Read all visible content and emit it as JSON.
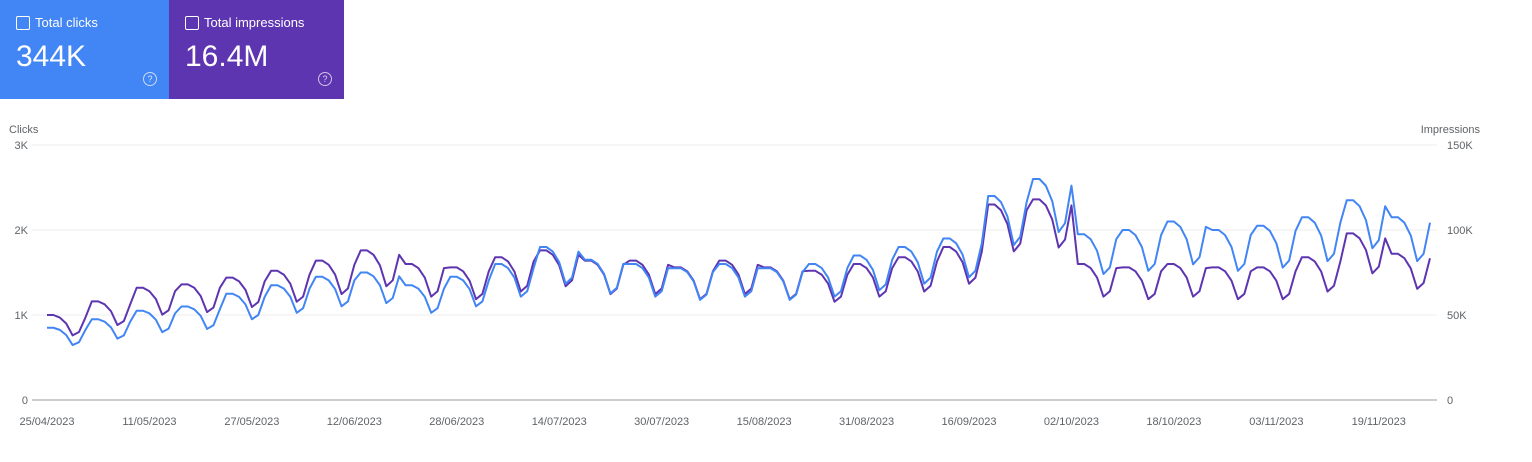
{
  "metrics": [
    {
      "label": "Total clicks",
      "value": "344K",
      "color": "#4285f4"
    },
    {
      "label": "Total impressions",
      "value": "16.4M",
      "color": "#5e35b1"
    }
  ],
  "chart_data": {
    "type": "line",
    "y_label": "Clicks",
    "y2_label": "Impressions",
    "grid": true,
    "categories": [
      "25/04/2023",
      null,
      null,
      null,
      null,
      null,
      null,
      null,
      null,
      null,
      null,
      null,
      null,
      null,
      null,
      null,
      "11/05/2023",
      null,
      null,
      null,
      null,
      null,
      null,
      null,
      null,
      null,
      null,
      null,
      null,
      null,
      null,
      null,
      "27/05/2023",
      null,
      null,
      null,
      null,
      null,
      null,
      null,
      null,
      null,
      null,
      null,
      null,
      null,
      null,
      null,
      "12/06/2023",
      null,
      null,
      null,
      null,
      null,
      null,
      null,
      null,
      null,
      null,
      null,
      null,
      null,
      null,
      null,
      "28/06/2023",
      null,
      null,
      null,
      null,
      null,
      null,
      null,
      null,
      null,
      null,
      null,
      null,
      null,
      null,
      null,
      "14/07/2023",
      null,
      null,
      null,
      null,
      null,
      null,
      null,
      null,
      null,
      null,
      null,
      null,
      null,
      null,
      null,
      "30/07/2023",
      null,
      null,
      null,
      null,
      null,
      null,
      null,
      null,
      null,
      null,
      null,
      null,
      null,
      null,
      null,
      "15/08/2023",
      null,
      null,
      null,
      null,
      null,
      null,
      null,
      null,
      null,
      null,
      null,
      null,
      null,
      null,
      null,
      "31/08/2023",
      null,
      null,
      null,
      null,
      null,
      null,
      null,
      null,
      null,
      null,
      null,
      null,
      null,
      null,
      null,
      "16/09/2023",
      null,
      null,
      null,
      null,
      null,
      null,
      null,
      null,
      null,
      null,
      null,
      null,
      null,
      null,
      null,
      "02/10/2023",
      null,
      null,
      null,
      null,
      null,
      null,
      null,
      null,
      null,
      null,
      null,
      null,
      null,
      null,
      null,
      "18/10/2023",
      null,
      null,
      null,
      null,
      null,
      null,
      null,
      null,
      null,
      null,
      null,
      null,
      null,
      null,
      null,
      "03/11/2023",
      null,
      null,
      null,
      null,
      null,
      null,
      null,
      null,
      null,
      null,
      null,
      null,
      null,
      null,
      null,
      "19/11/2023",
      null,
      null,
      null,
      null,
      null,
      null,
      null,
      null
    ],
    "ylim": [
      0,
      3000
    ],
    "yticks": [
      0,
      {
        "value": 1000,
        "label": "1K"
      },
      {
        "value": 2000,
        "label": "2K"
      },
      {
        "value": 3000,
        "label": "3K"
      }
    ],
    "y2lim": [
      0,
      150000
    ],
    "y2ticks": [
      0,
      {
        "value": 50000,
        "label": "50K"
      },
      {
        "value": 100000,
        "label": "100K"
      },
      {
        "value": 150000,
        "label": "150K"
      }
    ],
    "series": [
      {
        "color": "#4285f4",
        "values": [
          850,
          850,
          825,
          765,
          646,
          680,
          825,
          950,
          950,
          922,
          855,
          722,
          760,
          922,
          1050,
          1050,
          1019,
          945,
          798,
          840,
          1019,
          1100,
          1100,
          1067,
          990,
          836,
          880,
          1067,
          1250,
          1250,
          1213,
          1125,
          950,
          1000,
          1213,
          1350,
          1350,
          1310,
          1215,
          1026,
          1080,
          1310,
          1450,
          1450,
          1407,
          1305,
          1102,
          1160,
          1407,
          1500,
          1500,
          1455,
          1350,
          1140,
          1200,
          1455,
          1350,
          1350,
          1310,
          1215,
          1026,
          1080,
          1310,
          1450,
          1450,
          1407,
          1305,
          1102,
          1160,
          1407,
          1600,
          1600,
          1552,
          1440,
          1216,
          1280,
          1552,
          1800,
          1800,
          1746,
          1620,
          1368,
          1440,
          1746,
          1650,
          1650,
          1601,
          1485,
          1254,
          1320,
          1601,
          1600,
          1600,
          1552,
          1440,
          1216,
          1280,
          1552,
          1550,
          1550,
          1504,
          1395,
          1178,
          1240,
          1504,
          1600,
          1600,
          1552,
          1440,
          1216,
          1280,
          1552,
          1550,
          1550,
          1504,
          1395,
          1178,
          1240,
          1504,
          1600,
          1600,
          1552,
          1440,
          1216,
          1280,
          1552,
          1700,
          1700,
          1649,
          1530,
          1292,
          1360,
          1649,
          1800,
          1800,
          1746,
          1620,
          1368,
          1440,
          1746,
          1900,
          1900,
          1843,
          1710,
          1444,
          1520,
          1843,
          2400,
          2400,
          2328,
          2160,
          1824,
          1920,
          2328,
          2600,
          2600,
          2522,
          2340,
          1976,
          2080,
          2522,
          1950,
          1950,
          1892,
          1755,
          1482,
          1560,
          1892,
          2000,
          2000,
          1940,
          1800,
          1520,
          1600,
          1940,
          2100,
          2100,
          2037,
          1890,
          1596,
          1680,
          2037,
          2000,
          2000,
          1940,
          1800,
          1520,
          1600,
          1940,
          2050,
          2050,
          1989,
          1845,
          1558,
          1640,
          1989,
          2150,
          2150,
          2086,
          1935,
          1634,
          1720,
          2086,
          2350,
          2350,
          2280,
          2115,
          1786,
          1880,
          2280,
          2150,
          2150,
          2086,
          1935,
          1634,
          1720,
          2086
        ]
      },
      {
        "color": "#5e35b1",
        "axis": "y2",
        "values": [
          50000,
          50000,
          48500,
          45000,
          38000,
          40000,
          48500,
          58000,
          58000,
          56300,
          52200,
          44100,
          46400,
          56300,
          66000,
          66000,
          64000,
          59400,
          50200,
          52800,
          64000,
          68000,
          68000,
          66000,
          61200,
          51700,
          54400,
          66000,
          72000,
          72000,
          69800,
          64800,
          54700,
          57600,
          69800,
          76000,
          76000,
          73700,
          68400,
          57800,
          60800,
          73700,
          82000,
          82000,
          79500,
          73800,
          62300,
          65600,
          79500,
          88000,
          88000,
          85400,
          79200,
          66900,
          70400,
          85400,
          80000,
          80000,
          77600,
          72000,
          60800,
          64000,
          77600,
          78000,
          78000,
          75700,
          70200,
          59300,
          62400,
          75700,
          84000,
          84000,
          81500,
          75600,
          63800,
          67200,
          81500,
          88000,
          88000,
          85400,
          79200,
          66900,
          70400,
          85400,
          82000,
          82000,
          79500,
          73800,
          62300,
          65600,
          79500,
          82000,
          82000,
          79500,
          73800,
          62300,
          65600,
          79500,
          78000,
          78000,
          75700,
          70200,
          59300,
          62400,
          75700,
          82000,
          82000,
          79500,
          73800,
          62300,
          65600,
          79500,
          78000,
          78000,
          75700,
          70200,
          59300,
          62400,
          75700,
          76000,
          76000,
          73700,
          68400,
          57800,
          60800,
          73700,
          80000,
          80000,
          77600,
          72000,
          60800,
          64000,
          77600,
          84000,
          84000,
          81500,
          75600,
          63800,
          67200,
          81500,
          90000,
          90000,
          87300,
          81000,
          68400,
          72000,
          87300,
          115000,
          115000,
          111600,
          103500,
          87400,
          92000,
          111600,
          118000,
          118000,
          114500,
          106200,
          89700,
          94400,
          114500,
          80000,
          80000,
          77600,
          72000,
          60800,
          64000,
          77600,
          78000,
          78000,
          75700,
          70200,
          59300,
          62400,
          75700,
          80000,
          80000,
          77600,
          72000,
          60800,
          64000,
          77600,
          78000,
          78000,
          75700,
          70200,
          59300,
          62400,
          75700,
          78000,
          78000,
          75700,
          70200,
          59300,
          62400,
          75700,
          84000,
          84000,
          81500,
          75600,
          63800,
          67200,
          81500,
          98000,
          98000,
          95100,
          88200,
          74500,
          78400,
          95100,
          86000,
          86000,
          83400,
          77400,
          65400,
          68800,
          83400
        ]
      }
    ]
  }
}
